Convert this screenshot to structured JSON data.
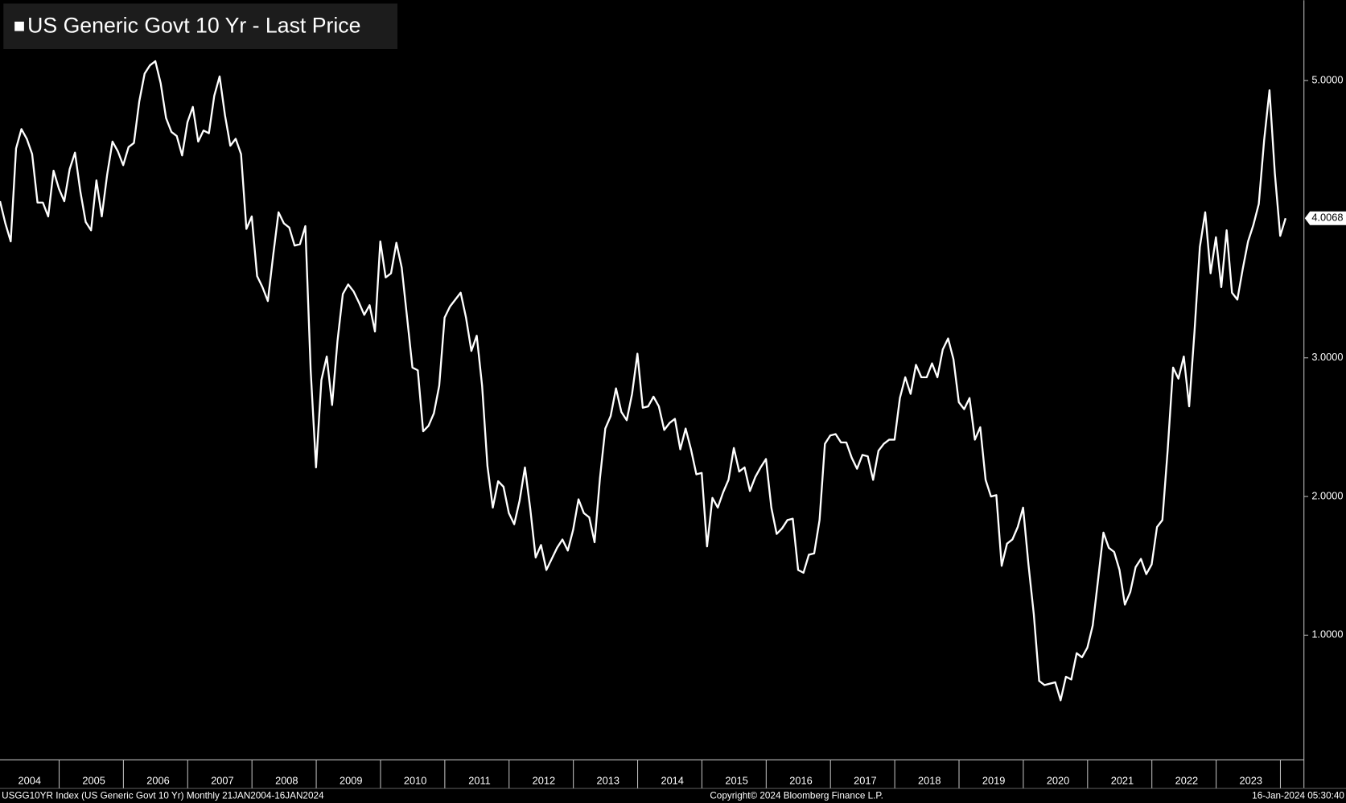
{
  "chart_data": {
    "type": "line",
    "categories": [
      null,
      null,
      null,
      null,
      null,
      null,
      "2004",
      null,
      null,
      null,
      null,
      null,
      null,
      null,
      null,
      null,
      null,
      null,
      "2005",
      null,
      null,
      null,
      null,
      null,
      null,
      null,
      null,
      null,
      null,
      null,
      "2006",
      null,
      null,
      null,
      null,
      null,
      null,
      null,
      null,
      null,
      null,
      null,
      "2007",
      null,
      null,
      null,
      null,
      null,
      null,
      null,
      null,
      null,
      null,
      null,
      "2008",
      null,
      null,
      null,
      null,
      null,
      null,
      null,
      null,
      null,
      null,
      null,
      "2009",
      null,
      null,
      null,
      null,
      null,
      null,
      null,
      null,
      null,
      null,
      null,
      "2010",
      null,
      null,
      null,
      null,
      null,
      null,
      null,
      null,
      null,
      null,
      null,
      "2011",
      null,
      null,
      null,
      null,
      null,
      null,
      null,
      null,
      null,
      null,
      null,
      "2012",
      null,
      null,
      null,
      null,
      null,
      null,
      null,
      null,
      null,
      null,
      null,
      "2013",
      null,
      null,
      null,
      null,
      null,
      null,
      null,
      null,
      null,
      null,
      null,
      "2014",
      null,
      null,
      null,
      null,
      null,
      null,
      null,
      null,
      null,
      null,
      null,
      "2015",
      null,
      null,
      null,
      null,
      null,
      null,
      null,
      null,
      null,
      null,
      null,
      "2016",
      null,
      null,
      null,
      null,
      null,
      null,
      null,
      null,
      null,
      null,
      null,
      "2017",
      null,
      null,
      null,
      null,
      null,
      null,
      null,
      null,
      null,
      null,
      null,
      "2018",
      null,
      null,
      null,
      null,
      null,
      null,
      null,
      null,
      null,
      null,
      null,
      "2019",
      null,
      null,
      null,
      null,
      null,
      null,
      null,
      null,
      null,
      null,
      null,
      "2020",
      null,
      null,
      null,
      null,
      null,
      null,
      null,
      null,
      null,
      null,
      null,
      "2021",
      null,
      null,
      null,
      null,
      null,
      null,
      null,
      null,
      null,
      null,
      null,
      "2022",
      null,
      null,
      null,
      null,
      null,
      null,
      null,
      null,
      null,
      null,
      null,
      "2023",
      null,
      null,
      null,
      null,
      null,
      null
    ],
    "series": [
      {
        "name": "US Generic Govt 10 Yr - Last Price",
        "color": "#ffffff",
        "values": [
          4.13,
          3.97,
          3.84,
          4.51,
          4.65,
          4.58,
          4.47,
          4.12,
          4.12,
          4.02,
          4.35,
          4.22,
          4.13,
          4.36,
          4.48,
          4.2,
          3.98,
          3.92,
          4.28,
          4.02,
          4.32,
          4.56,
          4.49,
          4.39,
          4.52,
          4.55,
          4.85,
          5.05,
          5.11,
          5.14,
          4.98,
          4.73,
          4.63,
          4.6,
          4.46,
          4.7,
          4.81,
          4.56,
          4.64,
          4.62,
          4.89,
          5.03,
          4.75,
          4.53,
          4.58,
          4.47,
          3.93,
          4.02,
          3.59,
          3.51,
          3.41,
          3.74,
          4.05,
          3.97,
          3.94,
          3.81,
          3.82,
          3.95,
          2.91,
          2.21,
          2.84,
          3.01,
          2.66,
          3.12,
          3.46,
          3.53,
          3.48,
          3.4,
          3.31,
          3.38,
          3.19,
          3.84,
          3.58,
          3.61,
          3.83,
          3.65,
          3.29,
          2.93,
          2.91,
          2.47,
          2.51,
          2.6,
          2.8,
          3.29,
          3.37,
          3.42,
          3.47,
          3.29,
          3.05,
          3.16,
          2.8,
          2.22,
          1.92,
          2.11,
          2.07,
          1.88,
          1.8,
          1.97,
          2.21,
          1.91,
          1.56,
          1.65,
          1.47,
          1.55,
          1.63,
          1.69,
          1.61,
          1.76,
          1.98,
          1.88,
          1.85,
          1.67,
          2.13,
          2.49,
          2.58,
          2.78,
          2.61,
          2.55,
          2.74,
          3.03,
          2.64,
          2.65,
          2.72,
          2.65,
          2.48,
          2.53,
          2.56,
          2.34,
          2.49,
          2.34,
          2.16,
          2.17,
          1.64,
          1.99,
          1.92,
          2.03,
          2.12,
          2.35,
          2.18,
          2.21,
          2.04,
          2.14,
          2.21,
          2.27,
          1.92,
          1.73,
          1.77,
          1.83,
          1.84,
          1.47,
          1.45,
          1.58,
          1.59,
          1.83,
          2.38,
          2.44,
          2.45,
          2.39,
          2.39,
          2.28,
          2.2,
          2.3,
          2.29,
          2.12,
          2.33,
          2.38,
          2.41,
          2.41,
          2.71,
          2.86,
          2.74,
          2.95,
          2.86,
          2.86,
          2.96,
          2.86,
          3.06,
          3.14,
          2.99,
          2.68,
          2.63,
          2.71,
          2.41,
          2.5,
          2.12,
          2.0,
          2.01,
          1.5,
          1.66,
          1.69,
          1.78,
          1.92,
          1.51,
          1.15,
          0.67,
          0.64,
          0.65,
          0.66,
          0.53,
          0.7,
          0.68,
          0.87,
          0.84,
          0.91,
          1.07,
          1.4,
          1.74,
          1.63,
          1.6,
          1.47,
          1.22,
          1.31,
          1.49,
          1.55,
          1.44,
          1.51,
          1.78,
          1.83,
          2.34,
          2.93,
          2.85,
          3.01,
          2.65,
          3.19,
          3.8,
          4.05,
          3.61,
          3.87,
          3.51,
          3.92,
          3.47,
          3.42,
          3.64,
          3.84,
          3.96,
          4.11,
          4.57,
          4.93,
          4.33,
          3.88,
          4.0068
        ]
      }
    ],
    "last_price_label": "4.0068",
    "ylim": [
      0.1,
      5.58
    ],
    "yticks": [
      {
        "value": 1,
        "label": "1.0000"
      },
      {
        "value": 2,
        "label": "2.0000"
      },
      {
        "value": 3,
        "label": "3.0000"
      },
      {
        "value": 5,
        "label": "5.0000"
      }
    ],
    "grid": false,
    "footer_left": "USGG10YR Index (US Generic Govt 10 Yr)  Monthly 21JAN2004-16JAN2024",
    "footer_center": "Copyright© 2024 Bloomberg Finance L.P.",
    "footer_right": "16-Jan-2024 05:30:40"
  }
}
